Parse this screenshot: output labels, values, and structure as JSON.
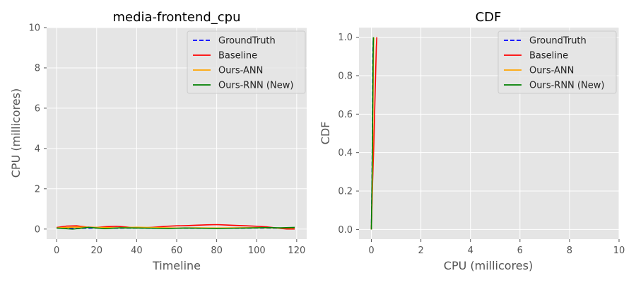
{
  "chart_data": [
    {
      "type": "line",
      "title": "media-frontend_cpu",
      "xlabel": "Timeline",
      "ylabel": "CPU (millicores)",
      "xlim": [
        -5,
        125
      ],
      "ylim": [
        -0.5,
        10
      ],
      "xticks": [
        0,
        20,
        40,
        60,
        80,
        100,
        120
      ],
      "yticks": [
        0,
        2,
        4,
        6,
        8,
        10
      ],
      "grid": true,
      "legend_position": "top-right",
      "series": [
        {
          "name": "GroundTruth",
          "color": "#0000ff",
          "dash": "dashed",
          "x": [
            0,
            10,
            20,
            30,
            40,
            50,
            60,
            70,
            80,
            90,
            100,
            110,
            119
          ],
          "y": [
            0.05,
            0.03,
            0.05,
            0.04,
            0.05,
            0.04,
            0.05,
            0.04,
            0.05,
            0.04,
            0.05,
            0.04,
            0.05
          ]
        },
        {
          "name": "Baseline",
          "color": "#ff0000",
          "dash": "solid",
          "x": [
            0,
            5,
            10,
            15,
            20,
            25,
            30,
            35,
            40,
            45,
            50,
            55,
            60,
            65,
            70,
            75,
            80,
            85,
            90,
            95,
            100,
            105,
            110,
            115,
            119
          ],
          "y": [
            0.08,
            0.15,
            0.16,
            0.1,
            0.08,
            0.12,
            0.14,
            0.1,
            0.05,
            0.07,
            0.1,
            0.14,
            0.16,
            0.17,
            0.19,
            0.21,
            0.22,
            0.2,
            0.18,
            0.16,
            0.14,
            0.11,
            0.05,
            0.0,
            0.0
          ]
        },
        {
          "name": "Ours-ANN",
          "color": "#ffa500",
          "dash": "solid",
          "x": [
            0,
            10,
            20,
            30,
            40,
            50,
            60,
            70,
            80,
            90,
            100,
            110,
            119
          ],
          "y": [
            0.06,
            0.1,
            0.08,
            0.06,
            0.09,
            0.07,
            0.05,
            0.06,
            0.05,
            0.06,
            0.07,
            0.05,
            0.06
          ]
        },
        {
          "name": "Ours-RNN (New)",
          "color": "#008000",
          "dash": "solid",
          "x": [
            0,
            8,
            16,
            24,
            32,
            40,
            48,
            56,
            64,
            72,
            80,
            88,
            96,
            104,
            112,
            119
          ],
          "y": [
            0.05,
            0.0,
            0.08,
            0.02,
            0.06,
            0.05,
            0.04,
            0.03,
            0.05,
            0.04,
            0.03,
            0.04,
            0.05,
            0.07,
            0.06,
            0.08
          ]
        }
      ]
    },
    {
      "type": "line",
      "title": "CDF",
      "xlabel": "CPU (millicores)",
      "ylabel": "CDF",
      "xlim": [
        -0.5,
        10
      ],
      "ylim": [
        -0.05,
        1.05
      ],
      "xticks": [
        0,
        2,
        4,
        6,
        8,
        10
      ],
      "yticks": [
        0.0,
        0.2,
        0.4,
        0.6,
        0.8,
        1.0
      ],
      "ytick_labels": [
        "0.0",
        "0.2",
        "0.4",
        "0.6",
        "0.8",
        "1.0"
      ],
      "grid": true,
      "legend_position": "top-right",
      "series": [
        {
          "name": "GroundTruth",
          "color": "#0000ff",
          "dash": "dashed",
          "x": [
            0.0,
            0.02,
            0.04,
            0.05,
            0.06,
            0.08
          ],
          "y": [
            0.0,
            0.2,
            0.5,
            0.7,
            0.9,
            1.0
          ]
        },
        {
          "name": "Baseline",
          "color": "#ff0000",
          "dash": "solid",
          "x": [
            0.0,
            0.05,
            0.1,
            0.15,
            0.2,
            0.22
          ],
          "y": [
            0.0,
            0.25,
            0.45,
            0.7,
            0.95,
            1.0
          ]
        },
        {
          "name": "Ours-ANN",
          "color": "#ffa500",
          "dash": "solid",
          "x": [
            0.0,
            0.05,
            0.07,
            0.09,
            0.1
          ],
          "y": [
            0.0,
            0.3,
            0.7,
            0.95,
            1.0
          ]
        },
        {
          "name": "Ours-RNN (New)",
          "color": "#008000",
          "dash": "solid",
          "x": [
            0.0,
            0.03,
            0.05,
            0.07,
            0.08
          ],
          "y": [
            0.0,
            0.3,
            0.6,
            0.9,
            1.0
          ]
        }
      ]
    }
  ]
}
